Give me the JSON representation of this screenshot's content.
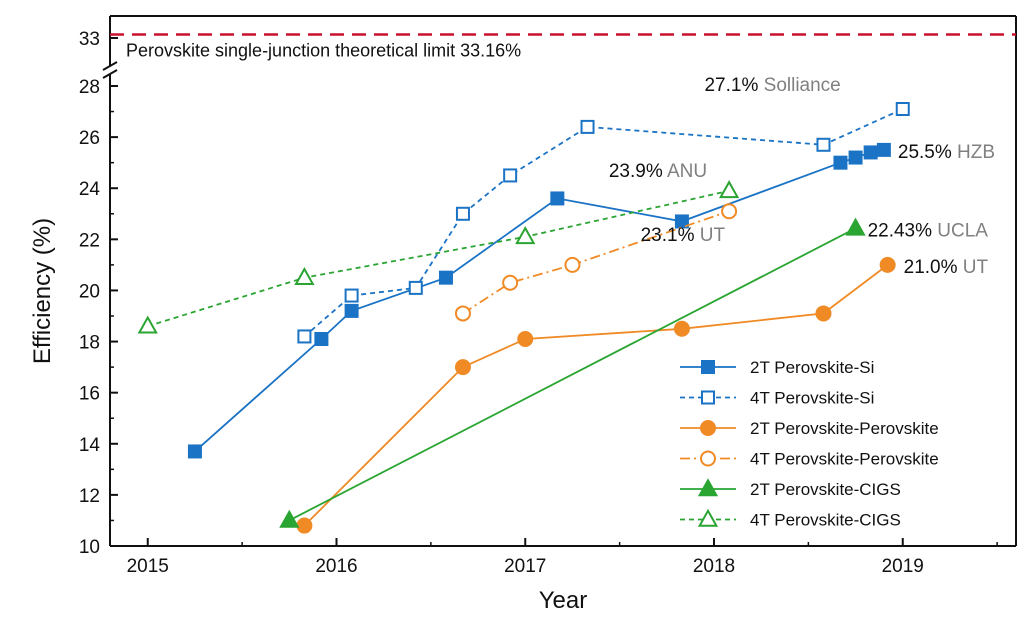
{
  "chart_data": {
    "type": "line",
    "xlabel": "Year",
    "ylabel": "Efficiency (%)",
    "xlim": [
      2014.8,
      2019.6
    ],
    "ylim": [
      10,
      28
    ],
    "upper_ylim": [
      32,
      34
    ],
    "axis_break": "between 28 and 33",
    "x_ticks": [
      2015,
      2016,
      2017,
      2018,
      2019
    ],
    "y_ticks": [
      10,
      12,
      14,
      16,
      18,
      20,
      22,
      24,
      26,
      28
    ],
    "upper_y_ticks": [
      33
    ],
    "grid": false,
    "legend_position": "bottom-right",
    "limit_line": {
      "value": 33.16,
      "label": "Perovskite single-junction theoretical limit 33.16%",
      "color": "#c8102e"
    },
    "series": [
      {
        "name": "2T Perovskite-Si",
        "color": "#1a73c4",
        "marker": "square",
        "filled": true,
        "dash": "solid",
        "points": [
          [
            2015.25,
            13.7
          ],
          [
            2015.92,
            18.1
          ],
          [
            2016.08,
            19.2
          ],
          [
            2016.58,
            20.5
          ],
          [
            2017.17,
            23.6
          ],
          [
            2017.83,
            22.7
          ],
          [
            2018.67,
            25.0
          ],
          [
            2018.75,
            25.2
          ],
          [
            2018.83,
            25.4
          ],
          [
            2018.9,
            25.5
          ]
        ]
      },
      {
        "name": "4T Perovskite-Si",
        "color": "#1a73c4",
        "marker": "square",
        "filled": false,
        "dash": "dashed",
        "points": [
          [
            2015.83,
            18.2
          ],
          [
            2016.08,
            19.8
          ],
          [
            2016.42,
            20.1
          ],
          [
            2016.67,
            23.0
          ],
          [
            2016.92,
            24.5
          ],
          [
            2017.33,
            26.4
          ],
          [
            2018.58,
            25.7
          ],
          [
            2019.0,
            27.1
          ]
        ]
      },
      {
        "name": "2T Perovskite-Perovskite",
        "color": "#f08a24",
        "marker": "circle",
        "filled": true,
        "dash": "solid",
        "points": [
          [
            2015.83,
            10.8
          ],
          [
            2016.67,
            17.0
          ],
          [
            2017.0,
            18.1
          ],
          [
            2017.83,
            18.5
          ],
          [
            2018.58,
            19.1
          ],
          [
            2018.92,
            21.0
          ]
        ]
      },
      {
        "name": "4T Perovskite-Perovskite",
        "color": "#f08a24",
        "marker": "circle",
        "filled": false,
        "dash": "dashdot",
        "points": [
          [
            2016.67,
            19.1
          ],
          [
            2016.92,
            20.3
          ],
          [
            2017.25,
            21.0
          ],
          [
            2018.08,
            23.1
          ]
        ]
      },
      {
        "name": "2T Perovskite-CIGS",
        "color": "#2aa532",
        "marker": "triangle",
        "filled": true,
        "dash": "solid",
        "points": [
          [
            2015.75,
            11.0
          ],
          [
            2018.75,
            22.43
          ]
        ]
      },
      {
        "name": "4T Perovskite-CIGS",
        "color": "#2aa532",
        "marker": "triangle",
        "filled": false,
        "dash": "dashed",
        "points": [
          [
            2015.0,
            18.6
          ],
          [
            2015.83,
            20.5
          ],
          [
            2017.0,
            22.1
          ],
          [
            2018.08,
            23.9
          ]
        ]
      }
    ],
    "annotations": [
      {
        "value": "27.1%",
        "label": "Solliance",
        "x": 2019.0,
        "y": 27.1
      },
      {
        "value": "25.5%",
        "label": "HZB",
        "x": 2018.9,
        "y": 25.5
      },
      {
        "value": "23.9%",
        "label": "ANU",
        "x": 2018.08,
        "y": 23.9
      },
      {
        "value": "23.1%",
        "label": "UT",
        "x": 2018.08,
        "y": 23.1
      },
      {
        "value": "22.43%",
        "label": "UCLA",
        "x": 2018.75,
        "y": 22.43
      },
      {
        "value": "21.0%",
        "label": "UT",
        "x": 2018.92,
        "y": 21.0
      }
    ]
  }
}
